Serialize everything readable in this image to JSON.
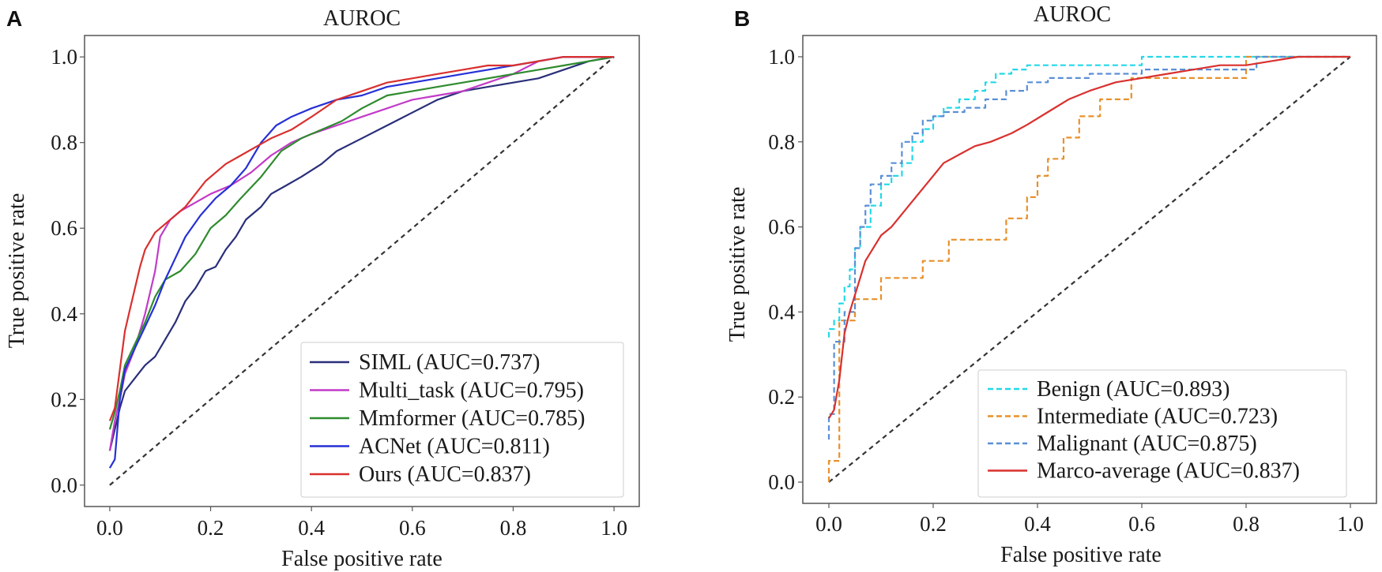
{
  "panels": [
    {
      "letter": "A"
    },
    {
      "letter": "B"
    }
  ],
  "chart_data": [
    {
      "type": "line",
      "title": "AUROC",
      "xlabel": "False positive rate",
      "ylabel": "True positive rate",
      "xlim": [
        -0.05,
        1.05
      ],
      "ylim": [
        -0.05,
        1.05
      ],
      "xticks": [
        "0.0",
        "0.2",
        "0.4",
        "0.6",
        "0.8",
        "1.0"
      ],
      "yticks": [
        "0.0",
        "0.2",
        "0.4",
        "0.6",
        "0.8",
        "1.0"
      ],
      "legend_position": "bottom-right",
      "series": [
        {
          "name": "SIML (AUC=0.737)",
          "color": "#2a2f7a",
          "dash": "solid",
          "x": [
            0,
            0.01,
            0.02,
            0.03,
            0.05,
            0.07,
            0.09,
            0.11,
            0.13,
            0.15,
            0.17,
            0.19,
            0.21,
            0.23,
            0.25,
            0.27,
            0.3,
            0.32,
            0.35,
            0.38,
            0.42,
            0.45,
            0.5,
            0.55,
            0.6,
            0.65,
            0.7,
            0.75,
            0.8,
            0.85,
            0.9,
            0.95,
            1.0
          ],
          "y": [
            0.08,
            0.13,
            0.18,
            0.22,
            0.25,
            0.28,
            0.3,
            0.34,
            0.38,
            0.43,
            0.46,
            0.5,
            0.51,
            0.55,
            0.58,
            0.62,
            0.65,
            0.68,
            0.7,
            0.72,
            0.75,
            0.78,
            0.81,
            0.84,
            0.87,
            0.9,
            0.92,
            0.93,
            0.94,
            0.95,
            0.97,
            0.99,
            1.0
          ]
        },
        {
          "name": "Multi_task (AUC=0.795)",
          "color": "#c23bc8",
          "dash": "solid",
          "x": [
            0,
            0.01,
            0.02,
            0.03,
            0.05,
            0.07,
            0.09,
            0.1,
            0.12,
            0.14,
            0.17,
            0.2,
            0.24,
            0.28,
            0.32,
            0.36,
            0.4,
            0.45,
            0.5,
            0.55,
            0.6,
            0.65,
            0.7,
            0.75,
            0.8,
            0.85,
            0.9,
            0.95,
            1.0
          ],
          "y": [
            0.08,
            0.15,
            0.2,
            0.26,
            0.32,
            0.4,
            0.5,
            0.58,
            0.62,
            0.64,
            0.66,
            0.68,
            0.7,
            0.73,
            0.77,
            0.8,
            0.82,
            0.84,
            0.86,
            0.88,
            0.9,
            0.91,
            0.92,
            0.94,
            0.96,
            0.99,
            1.0,
            1.0,
            1.0
          ]
        },
        {
          "name": "Mmformer (AUC=0.785)",
          "color": "#2e8b2e",
          "dash": "solid",
          "x": [
            0,
            0.01,
            0.02,
            0.03,
            0.05,
            0.07,
            0.09,
            0.11,
            0.14,
            0.17,
            0.2,
            0.23,
            0.26,
            0.3,
            0.34,
            0.38,
            0.42,
            0.46,
            0.5,
            0.55,
            0.6,
            0.65,
            0.7,
            0.75,
            0.8,
            0.85,
            0.9,
            0.95,
            1.0
          ],
          "y": [
            0.13,
            0.17,
            0.22,
            0.28,
            0.33,
            0.38,
            0.44,
            0.48,
            0.5,
            0.54,
            0.6,
            0.63,
            0.67,
            0.72,
            0.78,
            0.81,
            0.83,
            0.85,
            0.88,
            0.91,
            0.92,
            0.93,
            0.94,
            0.95,
            0.96,
            0.97,
            0.98,
            0.99,
            1.0
          ]
        },
        {
          "name": "ACNet (AUC=0.811)",
          "color": "#2630d6",
          "dash": "solid",
          "x": [
            0,
            0.01,
            0.02,
            0.03,
            0.05,
            0.07,
            0.09,
            0.11,
            0.13,
            0.15,
            0.18,
            0.21,
            0.24,
            0.27,
            0.3,
            0.33,
            0.36,
            0.4,
            0.45,
            0.5,
            0.55,
            0.6,
            0.65,
            0.7,
            0.75,
            0.8,
            0.85,
            0.9,
            0.95,
            1.0
          ],
          "y": [
            0.04,
            0.06,
            0.2,
            0.27,
            0.32,
            0.37,
            0.42,
            0.48,
            0.53,
            0.58,
            0.63,
            0.67,
            0.7,
            0.74,
            0.8,
            0.84,
            0.86,
            0.88,
            0.9,
            0.91,
            0.93,
            0.94,
            0.95,
            0.96,
            0.97,
            0.98,
            0.99,
            1.0,
            1.0,
            1.0
          ]
        },
        {
          "name": "Ours (AUC=0.837)",
          "color": "#d9302e",
          "dash": "solid",
          "x": [
            0,
            0.01,
            0.02,
            0.03,
            0.04,
            0.05,
            0.06,
            0.07,
            0.09,
            0.11,
            0.13,
            0.15,
            0.17,
            0.19,
            0.21,
            0.23,
            0.26,
            0.29,
            0.32,
            0.36,
            0.4,
            0.45,
            0.5,
            0.55,
            0.6,
            0.65,
            0.7,
            0.75,
            0.8,
            0.85,
            0.9,
            0.95,
            1.0
          ],
          "y": [
            0.15,
            0.18,
            0.27,
            0.36,
            0.41,
            0.46,
            0.51,
            0.55,
            0.59,
            0.61,
            0.63,
            0.65,
            0.68,
            0.71,
            0.73,
            0.75,
            0.77,
            0.79,
            0.81,
            0.83,
            0.86,
            0.9,
            0.92,
            0.94,
            0.95,
            0.96,
            0.97,
            0.98,
            0.98,
            0.99,
            1.0,
            1.0,
            1.0
          ]
        }
      ],
      "reference_line": {
        "x": [
          0,
          1
        ],
        "y": [
          0,
          1
        ],
        "color": "#333333",
        "dash": "dashed"
      }
    },
    {
      "type": "line",
      "title": "AUROC",
      "xlabel": "False positive rate",
      "ylabel": "True positive rate",
      "xlim": [
        -0.05,
        1.05
      ],
      "ylim": [
        -0.05,
        1.05
      ],
      "xticks": [
        "0.0",
        "0.2",
        "0.4",
        "0.6",
        "0.8",
        "1.0"
      ],
      "yticks": [
        "0.0",
        "0.2",
        "0.4",
        "0.6",
        "0.8",
        "1.0"
      ],
      "legend_position": "bottom-right",
      "series": [
        {
          "name": "Benign (AUC=0.893)",
          "color": "#22d8e8",
          "dash": "dashed",
          "step": true,
          "x": [
            0,
            0.01,
            0.02,
            0.03,
            0.04,
            0.05,
            0.06,
            0.08,
            0.1,
            0.12,
            0.14,
            0.16,
            0.18,
            0.2,
            0.22,
            0.25,
            0.28,
            0.3,
            0.32,
            0.35,
            0.38,
            0.4,
            0.6,
            0.67,
            0.9,
            1.0
          ],
          "y": [
            0.34,
            0.36,
            0.38,
            0.42,
            0.46,
            0.5,
            0.55,
            0.6,
            0.65,
            0.7,
            0.72,
            0.75,
            0.8,
            0.83,
            0.86,
            0.88,
            0.9,
            0.92,
            0.94,
            0.96,
            0.97,
            0.98,
            0.98,
            1.0,
            1.0,
            1.0
          ]
        },
        {
          "name": "Intermediate (AUC=0.723)",
          "color": "#e8902a",
          "dash": "dashed",
          "step": true,
          "x": [
            0,
            0.02,
            0.03,
            0.05,
            0.1,
            0.18,
            0.21,
            0.23,
            0.29,
            0.34,
            0.38,
            0.4,
            0.42,
            0.45,
            0.48,
            0.52,
            0.55,
            0.58,
            0.62,
            0.67,
            0.72,
            0.8,
            0.89,
            1.0
          ],
          "y": [
            0,
            0.05,
            0.38,
            0.38,
            0.43,
            0.48,
            0.52,
            0.52,
            0.57,
            0.57,
            0.62,
            0.67,
            0.72,
            0.76,
            0.81,
            0.86,
            0.9,
            0.9,
            0.95,
            0.95,
            0.95,
            0.95,
            1.0,
            1.0
          ]
        },
        {
          "name": "Malignant (AUC=0.875)",
          "color": "#5a8fd6",
          "dash": "dashed",
          "step": true,
          "x": [
            0,
            0.01,
            0.03,
            0.05,
            0.06,
            0.07,
            0.08,
            0.09,
            0.1,
            0.12,
            0.14,
            0.16,
            0.18,
            0.2,
            0.22,
            0.26,
            0.3,
            0.34,
            0.38,
            0.42,
            0.5,
            0.6,
            0.75,
            0.82,
            0.88,
            1.0
          ],
          "y": [
            0.1,
            0.16,
            0.33,
            0.4,
            0.55,
            0.6,
            0.65,
            0.7,
            0.7,
            0.72,
            0.75,
            0.8,
            0.82,
            0.85,
            0.86,
            0.87,
            0.88,
            0.9,
            0.92,
            0.94,
            0.95,
            0.96,
            0.97,
            0.97,
            1.0,
            1.0
          ]
        },
        {
          "name": "Marco-average (AUC=0.837)",
          "color": "#d9302e",
          "dash": "solid",
          "x": [
            0,
            0.01,
            0.02,
            0.03,
            0.04,
            0.05,
            0.06,
            0.07,
            0.08,
            0.1,
            0.12,
            0.14,
            0.16,
            0.18,
            0.2,
            0.22,
            0.25,
            0.28,
            0.31,
            0.35,
            0.38,
            0.42,
            0.46,
            0.5,
            0.55,
            0.6,
            0.65,
            0.7,
            0.75,
            0.8,
            0.85,
            0.9,
            0.95,
            1.0
          ],
          "y": [
            0.15,
            0.17,
            0.24,
            0.35,
            0.4,
            0.44,
            0.48,
            0.52,
            0.54,
            0.58,
            0.6,
            0.63,
            0.66,
            0.69,
            0.72,
            0.75,
            0.77,
            0.79,
            0.8,
            0.82,
            0.84,
            0.87,
            0.9,
            0.92,
            0.94,
            0.95,
            0.96,
            0.97,
            0.98,
            0.98,
            0.99,
            1.0,
            1.0,
            1.0
          ]
        }
      ],
      "reference_line": {
        "x": [
          0,
          1
        ],
        "y": [
          0,
          1
        ],
        "color": "#333333",
        "dash": "dashed"
      }
    }
  ]
}
